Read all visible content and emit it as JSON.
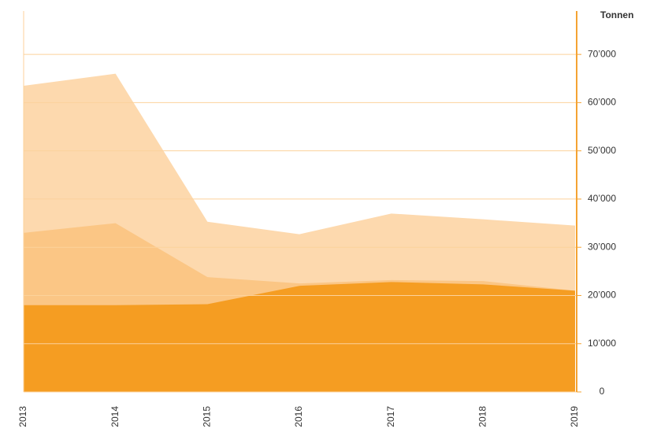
{
  "chart_data": {
    "type": "area",
    "y_axis_label": "Tonnen",
    "categories": [
      "2013",
      "2014",
      "2015",
      "2016",
      "2017",
      "2018",
      "2019"
    ],
    "series": [
      {
        "color": "#fdd9ae",
        "values": [
          63500,
          66000,
          35300,
          32700,
          37000,
          35800,
          34500
        ]
      },
      {
        "color": "#fbc685",
        "values": [
          33000,
          35000,
          23800,
          22500,
          23200,
          23000,
          21000
        ]
      },
      {
        "color": "#f59d22",
        "values": [
          18000,
          18000,
          18200,
          22000,
          22800,
          22300,
          21000
        ]
      }
    ],
    "ylim": [
      0,
      79000
    ],
    "yticks": [
      0,
      {
        "value": 10000,
        "label": "10’000"
      },
      {
        "value": 20000,
        "label": "20’000"
      },
      {
        "value": 30000,
        "label": "30’000"
      },
      {
        "value": 40000,
        "label": "40’000"
      },
      {
        "value": 50000,
        "label": "50’000"
      },
      {
        "value": 60000,
        "label": "60’000"
      },
      {
        "value": 70000,
        "label": "70’000"
      }
    ],
    "grid": true,
    "y_axis_side": "right"
  }
}
